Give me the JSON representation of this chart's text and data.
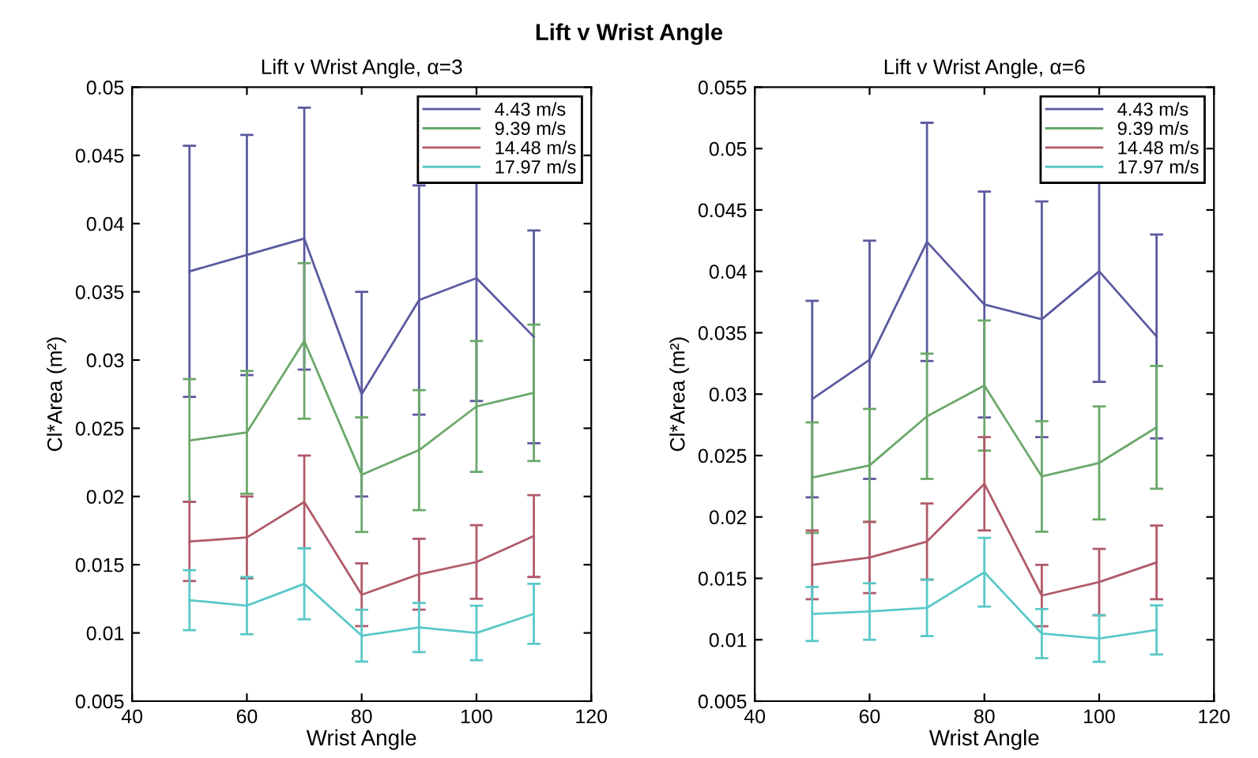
{
  "chart_data": [
    {
      "type": "line",
      "title": "Lift v Wrist Angle, α=3",
      "xlabel": "Wrist Angle",
      "ylabel": "Cl*Area (m²)",
      "annotations": [
        "Lift v Wrist Angle"
      ],
      "x": [
        50,
        60,
        70,
        80,
        90,
        100,
        110
      ],
      "xlim": [
        40,
        120
      ],
      "xticks": [
        40,
        60,
        80,
        100,
        120
      ],
      "ylim": [
        0.005,
        0.05
      ],
      "yticks": [
        0.005,
        0.01,
        0.015,
        0.02,
        0.025,
        0.03,
        0.035,
        0.04,
        0.045,
        0.05
      ],
      "legend": "top right",
      "grid": false,
      "marker": "none",
      "line_style": "solid",
      "series": [
        {
          "name": "4.43 m/s",
          "color": "#5a5aa0",
          "values": [
            0.0365,
            0.0377,
            0.0389,
            0.0275,
            0.0344,
            0.036,
            0.0317
          ],
          "errors": [
            0.0092,
            0.0088,
            0.0096,
            0.0075,
            0.0084,
            0.009,
            0.0078
          ]
        },
        {
          "name": "9.39 m/s",
          "color": "#6aa86a",
          "values": [
            0.0241,
            0.0247,
            0.0314,
            0.0216,
            0.0234,
            0.0266,
            0.0276
          ],
          "errors": [
            0.0045,
            0.0045,
            0.0057,
            0.0042,
            0.0044,
            0.0048,
            0.005
          ]
        },
        {
          "name": "14.48 m/s",
          "color": "#b05a6a",
          "values": [
            0.0167,
            0.017,
            0.0196,
            0.0128,
            0.0143,
            0.0152,
            0.0171
          ],
          "errors": [
            0.0029,
            0.003,
            0.0034,
            0.0023,
            0.0026,
            0.0027,
            0.003
          ]
        },
        {
          "name": "17.97 m/s",
          "color": "#5ac8c8",
          "values": [
            0.0124,
            0.012,
            0.0136,
            0.0098,
            0.0104,
            0.01,
            0.0114
          ],
          "errors": [
            0.0022,
            0.0021,
            0.0026,
            0.0019,
            0.0018,
            0.002,
            0.0022
          ]
        }
      ]
    },
    {
      "type": "line",
      "title": "Lift v Wrist Angle, α=6",
      "xlabel": "Wrist Angle",
      "ylabel": "Cl*Area (m²)",
      "x": [
        50,
        60,
        70,
        80,
        90,
        100,
        110
      ],
      "xlim": [
        40,
        120
      ],
      "xticks": [
        40,
        60,
        80,
        100,
        120
      ],
      "ylim": [
        0.005,
        0.055
      ],
      "yticks": [
        0.005,
        0.01,
        0.015,
        0.02,
        0.025,
        0.03,
        0.035,
        0.04,
        0.045,
        0.05,
        0.055
      ],
      "legend": "top right",
      "grid": false,
      "marker": "none",
      "line_style": "solid",
      "series": [
        {
          "name": "4.43 m/s",
          "color": "#5a5aa0",
          "values": [
            0.0296,
            0.0328,
            0.0424,
            0.0373,
            0.0361,
            0.04,
            0.0347
          ],
          "errors": [
            0.008,
            0.0097,
            0.0097,
            0.0092,
            0.0096,
            0.009,
            0.0083
          ]
        },
        {
          "name": "9.39 m/s",
          "color": "#6aa86a",
          "values": [
            0.0232,
            0.0242,
            0.0282,
            0.0307,
            0.0233,
            0.0244,
            0.0273
          ],
          "errors": [
            0.0045,
            0.0046,
            0.0051,
            0.0053,
            0.0045,
            0.0046,
            0.005
          ]
        },
        {
          "name": "14.48 m/s",
          "color": "#b05a6a",
          "values": [
            0.0161,
            0.0167,
            0.018,
            0.0227,
            0.0136,
            0.0147,
            0.0163
          ],
          "errors": [
            0.0028,
            0.0029,
            0.0031,
            0.0038,
            0.0025,
            0.0027,
            0.003
          ]
        },
        {
          "name": "17.97 m/s",
          "color": "#5ac8c8",
          "values": [
            0.0121,
            0.0123,
            0.0126,
            0.0155,
            0.0105,
            0.0101,
            0.0108
          ],
          "errors": [
            0.0022,
            0.0023,
            0.0023,
            0.0028,
            0.002,
            0.0019,
            0.002
          ]
        }
      ]
    }
  ]
}
